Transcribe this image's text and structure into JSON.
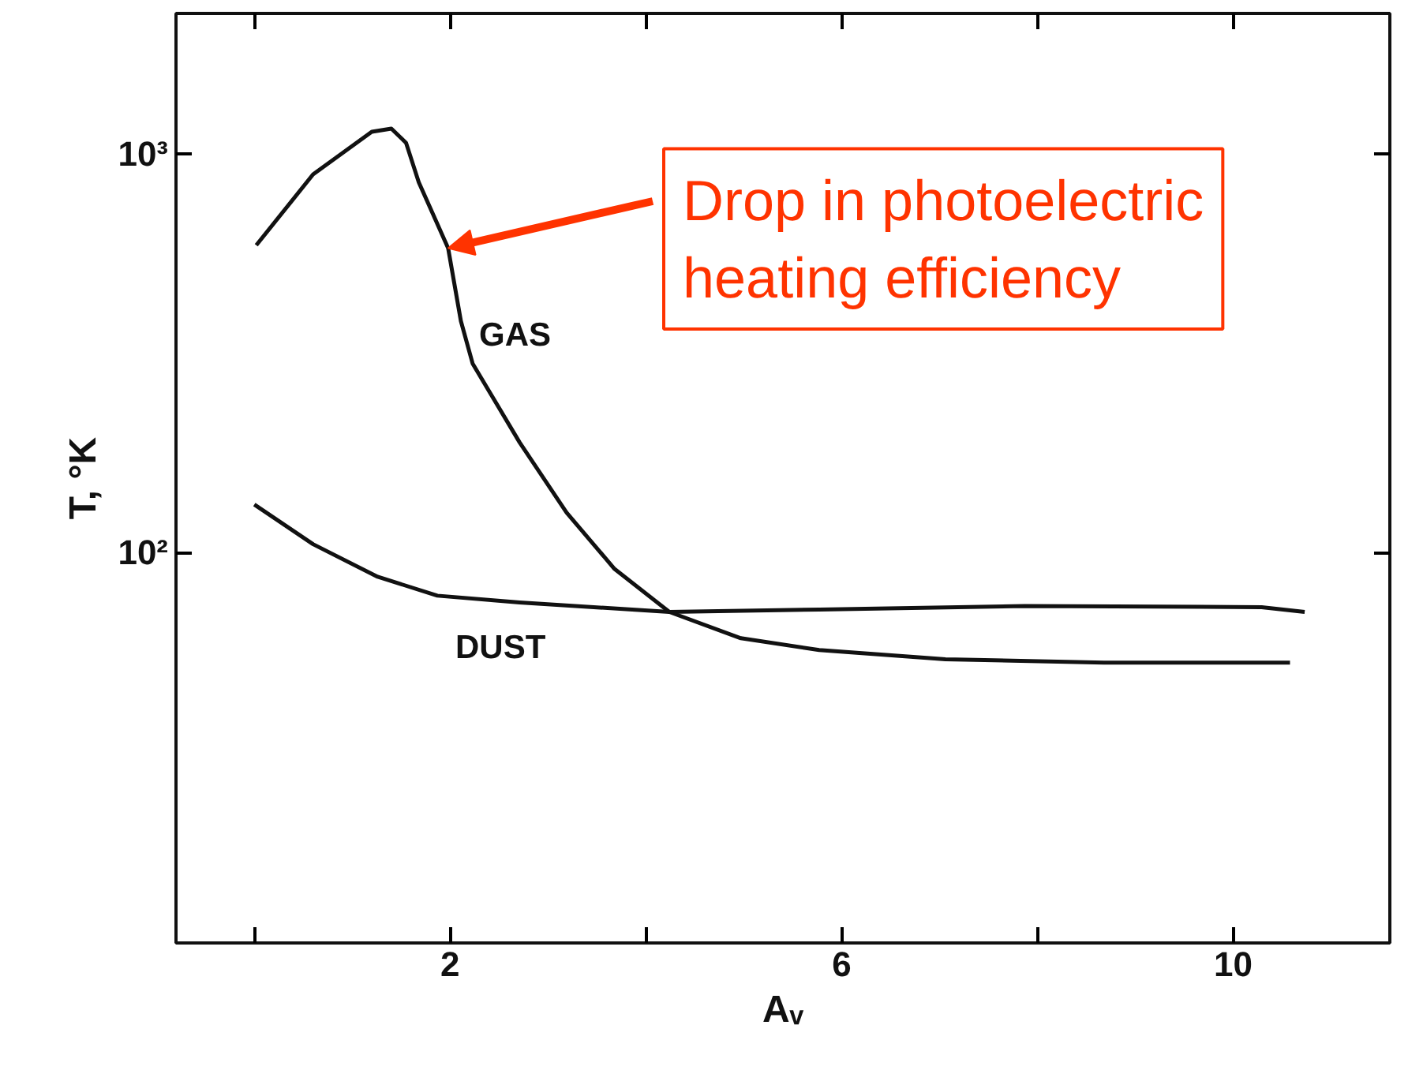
{
  "chart_data": {
    "type": "line",
    "xlabel": "Aᵥ",
    "ylabel": "T, °K",
    "log": "y",
    "grid": false,
    "marker": "none",
    "line_style": "solid",
    "xlim": [
      -0.8,
      11.6
    ],
    "ylim": [
      10.5,
      2250
    ],
    "xticks": [
      {
        "value": 0,
        "label": null
      },
      2,
      {
        "value": 4,
        "label": null
      },
      6,
      {
        "value": 8,
        "label": null
      },
      10
    ],
    "yticks": [
      {
        "value": 100,
        "label": "10²"
      },
      {
        "value": 1000,
        "label": "10³"
      }
    ],
    "series": [
      {
        "color": "#111111",
        "x": [
          0.02,
          0.6,
          1.2,
          1.4,
          1.55,
          1.68,
          1.98,
          2.11,
          2.23,
          2.71,
          3.19,
          3.68,
          4.24,
          4.97,
          5.77,
          7.06,
          8.68,
          10.58
        ],
        "values": [
          590,
          888,
          1136,
          1157,
          1066,
          849,
          580,
          381,
          298,
          189,
          126,
          91,
          71,
          61,
          57,
          54,
          53,
          53
        ]
      },
      {
        "color": "#111111",
        "x": [
          0,
          0.6,
          1.26,
          1.87,
          2.71,
          4.24,
          5.77,
          7.87,
          10.29,
          10.73
        ],
        "values": [
          132,
          105,
          87,
          78,
          75,
          71,
          72,
          73.5,
          73,
          71
        ]
      }
    ],
    "annotations": [
      {
        "text": "Drop in photoelectric\nheating efficiency",
        "x": 1.98,
        "y": 580
      },
      "GAS",
      "DUST"
    ]
  }
}
